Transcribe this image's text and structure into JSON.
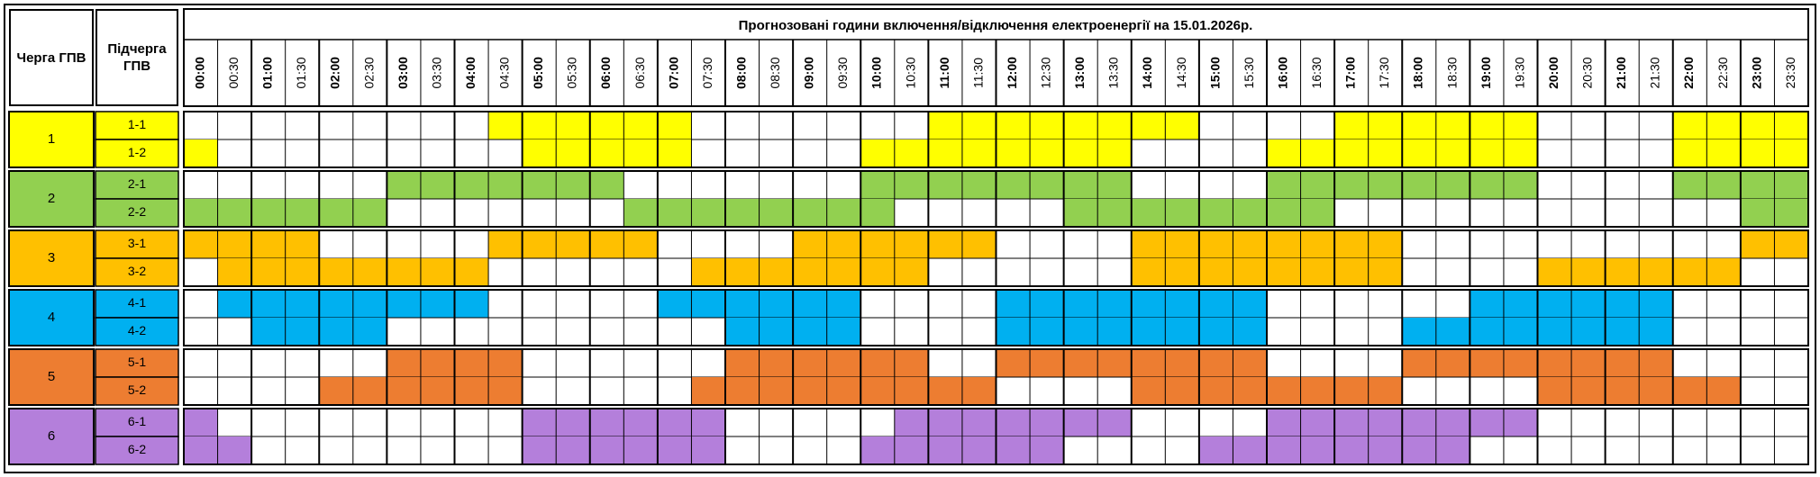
{
  "header": {
    "queue": "Черга ГПВ",
    "subqueue": "Підчерга ГПВ",
    "title": "Прогнозовані години включення/відключення електроенергії на 15.01.2026р."
  },
  "times": [
    "00:00",
    "00:30",
    "01:00",
    "01:30",
    "02:00",
    "02:30",
    "03:00",
    "03:30",
    "04:00",
    "04:30",
    "05:00",
    "05:30",
    "06:00",
    "06:30",
    "07:00",
    "07:30",
    "08:00",
    "08:30",
    "09:00",
    "09:30",
    "10:00",
    "10:30",
    "11:00",
    "11:30",
    "12:00",
    "12:30",
    "13:00",
    "13:30",
    "14:00",
    "14:30",
    "15:00",
    "15:30",
    "16:00",
    "16:30",
    "17:00",
    "17:30",
    "18:00",
    "18:30",
    "19:00",
    "19:30",
    "20:00",
    "20:30",
    "21:00",
    "21:30",
    "22:00",
    "22:30",
    "23:00",
    "23:30"
  ],
  "groups": [
    {
      "label": "1",
      "color": "#ffff00",
      "subqueues": [
        {
          "label": "1-1",
          "colored": [
            [
              9,
              14
            ],
            [
              22,
              29
            ],
            [
              34,
              39
            ],
            [
              44,
              47
            ]
          ]
        },
        {
          "label": "1-2",
          "colored": [
            [
              0,
              0
            ],
            [
              10,
              14
            ],
            [
              20,
              27
            ],
            [
              32,
              39
            ],
            [
              44,
              47
            ]
          ]
        }
      ]
    },
    {
      "label": "2",
      "color": "#92d050",
      "subqueues": [
        {
          "label": "2-1",
          "colored": [
            [
              6,
              12
            ],
            [
              20,
              27
            ],
            [
              32,
              39
            ],
            [
              44,
              47
            ]
          ]
        },
        {
          "label": "2-2",
          "colored": [
            [
              0,
              5
            ],
            [
              13,
              20
            ],
            [
              26,
              33
            ],
            [
              46,
              47
            ]
          ]
        }
      ]
    },
    {
      "label": "3",
      "color": "#ffc000",
      "subqueues": [
        {
          "label": "3-1",
          "colored": [
            [
              0,
              3
            ],
            [
              9,
              13
            ],
            [
              18,
              23
            ],
            [
              28,
              35
            ],
            [
              46,
              47
            ]
          ]
        },
        {
          "label": "3-2",
          "colored": [
            [
              1,
              8
            ],
            [
              15,
              21
            ],
            [
              28,
              35
            ],
            [
              40,
              45
            ]
          ]
        }
      ]
    },
    {
      "label": "4",
      "color": "#00b0f0",
      "subqueues": [
        {
          "label": "4-1",
          "colored": [
            [
              1,
              8
            ],
            [
              14,
              19
            ],
            [
              24,
              31
            ],
            [
              38,
              43
            ]
          ]
        },
        {
          "label": "4-2",
          "colored": [
            [
              2,
              5
            ],
            [
              16,
              19
            ],
            [
              24,
              31
            ],
            [
              36,
              43
            ]
          ]
        }
      ]
    },
    {
      "label": "5",
      "color": "#ed7d31",
      "subqueues": [
        {
          "label": "5-1",
          "colored": [
            [
              6,
              9
            ],
            [
              16,
              21
            ],
            [
              24,
              31
            ],
            [
              36,
              43
            ]
          ]
        },
        {
          "label": "5-2",
          "colored": [
            [
              4,
              9
            ],
            [
              15,
              23
            ],
            [
              28,
              35
            ],
            [
              40,
              45
            ]
          ]
        }
      ]
    },
    {
      "label": "6",
      "color": "#b47fdb",
      "subqueues": [
        {
          "label": "6-1",
          "colored": [
            [
              0,
              0
            ],
            [
              10,
              15
            ],
            [
              21,
              27
            ],
            [
              32,
              39
            ]
          ]
        },
        {
          "label": "6-2",
          "colored": [
            [
              0,
              1
            ],
            [
              10,
              15
            ],
            [
              20,
              25
            ],
            [
              30,
              37
            ]
          ]
        }
      ]
    }
  ]
}
